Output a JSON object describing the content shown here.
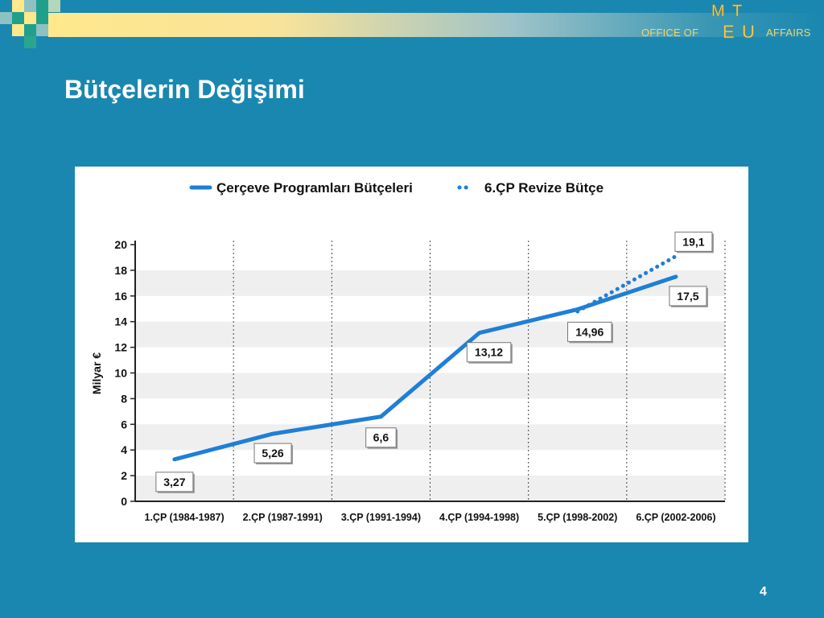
{
  "header": {
    "office_label": "OFFICE OF",
    "affairs_label": "AFFAIRS",
    "logo_letters": [
      "M",
      "T",
      "E",
      "U"
    ]
  },
  "slide": {
    "title": "Bütçelerin Değişimi",
    "page_number": "4"
  },
  "colors": {
    "background": "#1a87b0",
    "accent_gold": "#f4d567",
    "series_line": "#1f7fd6",
    "band_gray": "#efefef"
  },
  "chart_data": {
    "type": "line",
    "title": "",
    "xlabel": "",
    "ylabel": "Milyar €",
    "ylim": [
      0,
      20
    ],
    "yticks": [
      0,
      2,
      4,
      6,
      8,
      10,
      12,
      14,
      16,
      18,
      20
    ],
    "grid": true,
    "legend_position": "top-center",
    "categories": [
      "1.ÇP (1984-1987)",
      "2.ÇP (1987-1991)",
      "3.ÇP (1991-1994)",
      "4.ÇP (1994-1998)",
      "5.ÇP (1998-2002)",
      "6.ÇP (2002-2006)"
    ],
    "series": [
      {
        "name": "Çerçeve Programları Bütçeleri",
        "style": "solid",
        "points": [
          {
            "x": 0.4,
            "y": 3.27,
            "label": "3,27"
          },
          {
            "x": 1.4,
            "y": 5.26,
            "label": "5,26"
          },
          {
            "x": 2.5,
            "y": 6.6,
            "label": "6,6"
          },
          {
            "x": 3.5,
            "y": 13.12,
            "label": "13,12"
          },
          {
            "x": 4.5,
            "y": 14.96,
            "label": "14,96"
          },
          {
            "x": 5.5,
            "y": 17.5,
            "label": "17,5"
          }
        ]
      },
      {
        "name": "6.ÇP Revize Bütçe",
        "style": "dotted",
        "points": [
          {
            "x": 4.5,
            "y": 14.8
          },
          {
            "x": 5.5,
            "y": 19.1,
            "label": "19,1"
          }
        ]
      }
    ]
  }
}
